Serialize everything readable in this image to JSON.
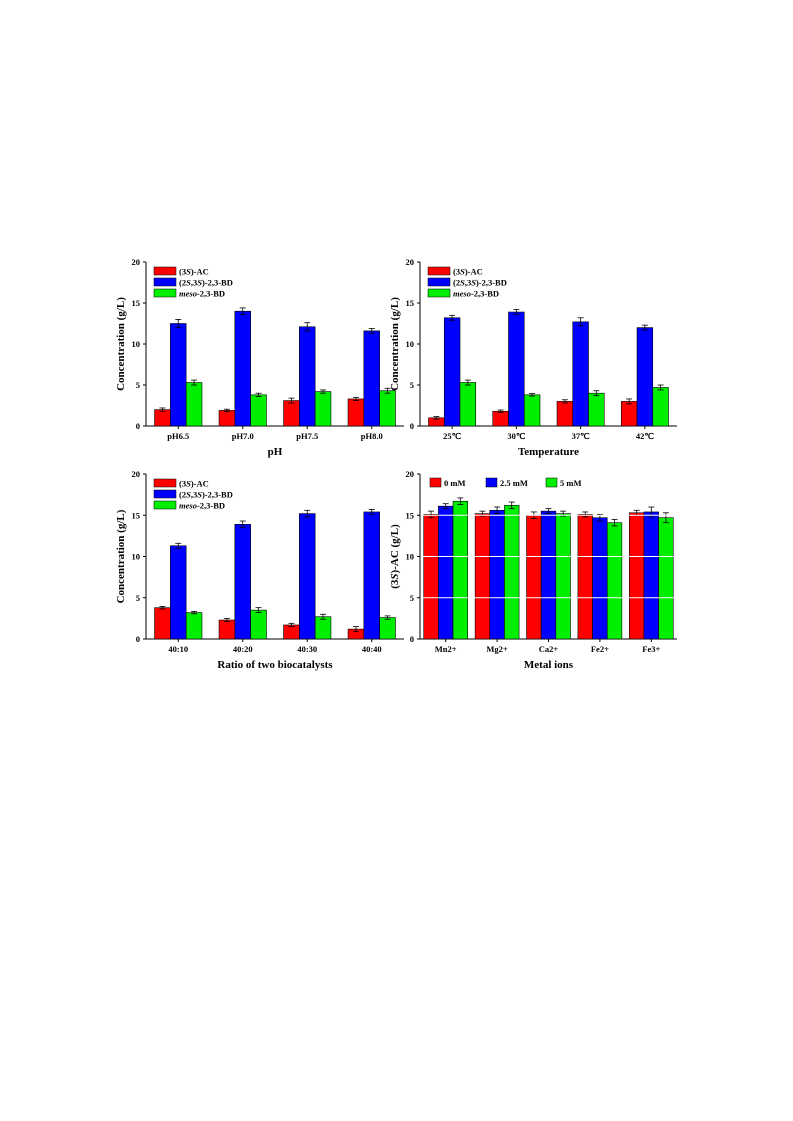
{
  "chart_data": [
    {
      "type": "bar",
      "xlabel": "pH",
      "ylabel": "Concentration (g/L)",
      "ylim": [
        0,
        20
      ],
      "yticks": [
        0,
        5,
        10,
        15,
        20
      ],
      "categories": [
        "pH6.5",
        "pH7.0",
        "pH7.5",
        "pH8.0"
      ],
      "legend_placement": "top-left",
      "legend_layout": "vertical",
      "series": [
        {
          "name": "(3S)-AC",
          "color": "#ff0000",
          "values": [
            2.0,
            1.9,
            3.1,
            3.3
          ],
          "errors": [
            0.2,
            0.15,
            0.3,
            0.2
          ]
        },
        {
          "name": "(2S,3S)-2,3-BD",
          "color": "#0000ff",
          "values": [
            12.5,
            14.0,
            12.1,
            11.6
          ],
          "errors": [
            0.5,
            0.4,
            0.5,
            0.3
          ]
        },
        {
          "name": "meso-2,3-BD",
          "color": "#00ee00",
          "values": [
            5.3,
            3.8,
            4.2,
            4.3
          ],
          "errors": [
            0.3,
            0.2,
            0.2,
            0.3
          ]
        }
      ]
    },
    {
      "type": "bar",
      "xlabel": "Temperature",
      "ylabel": "Concentration (g/L)",
      "ylim": [
        0,
        20
      ],
      "yticks": [
        0,
        5,
        10,
        15,
        20
      ],
      "categories": [
        "25℃",
        "30℃",
        "37℃",
        "42℃"
      ],
      "legend_placement": "top-left",
      "legend_layout": "vertical",
      "series": [
        {
          "name": "(3S)-AC",
          "color": "#ff0000",
          "values": [
            1.0,
            1.8,
            3.0,
            3.0
          ],
          "errors": [
            0.15,
            0.15,
            0.2,
            0.3
          ]
        },
        {
          "name": "(2S,3S)-2,3-BD",
          "color": "#0000ff",
          "values": [
            13.2,
            13.9,
            12.7,
            12.0
          ],
          "errors": [
            0.3,
            0.3,
            0.5,
            0.3
          ]
        },
        {
          "name": "meso-2,3-BD",
          "color": "#00ee00",
          "values": [
            5.3,
            3.8,
            4.0,
            4.7
          ],
          "errors": [
            0.3,
            0.15,
            0.3,
            0.3
          ]
        }
      ]
    },
    {
      "type": "bar",
      "xlabel": "Ratio of two biocatalysts",
      "ylabel": "Concentration (g/L)",
      "ylim": [
        0,
        20
      ],
      "yticks": [
        0,
        5,
        10,
        15,
        20
      ],
      "categories": [
        "40:10",
        "40:20",
        "40:30",
        "40:40"
      ],
      "legend_placement": "top-left",
      "legend_layout": "vertical",
      "series": [
        {
          "name": "(3S)-AC",
          "color": "#ff0000",
          "values": [
            3.8,
            2.3,
            1.7,
            1.2
          ],
          "errors": [
            0.15,
            0.2,
            0.2,
            0.3
          ]
        },
        {
          "name": "(2S,3S)-2,3-BD",
          "color": "#0000ff",
          "values": [
            11.3,
            13.9,
            15.2,
            15.4
          ],
          "errors": [
            0.3,
            0.4,
            0.4,
            0.3
          ]
        },
        {
          "name": "meso-2,3-BD",
          "color": "#00ee00",
          "values": [
            3.2,
            3.5,
            2.7,
            2.6
          ],
          "errors": [
            0.15,
            0.3,
            0.3,
            0.2
          ]
        }
      ]
    },
    {
      "type": "bar",
      "xlabel": "Metal ions",
      "ylabel": "(3S)-AC (g/L)",
      "ylim": [
        0,
        20
      ],
      "yticks": [
        0,
        5,
        10,
        15,
        20
      ],
      "categories": [
        "Mn2+",
        "Mg2+",
        "Ca2+",
        "Fe2+",
        "Fe3+"
      ],
      "legend_placement": "top",
      "legend_layout": "horizontal",
      "series": [
        {
          "name": "0 mM",
          "color": "#ff0000",
          "values": [
            15.1,
            15.2,
            15.0,
            15.1,
            15.3
          ],
          "errors": [
            0.4,
            0.3,
            0.4,
            0.3,
            0.3
          ]
        },
        {
          "name": "2.5 mM",
          "color": "#0000ff",
          "values": [
            16.1,
            15.6,
            15.5,
            14.7,
            15.4
          ],
          "errors": [
            0.3,
            0.4,
            0.3,
            0.4,
            0.6
          ]
        },
        {
          "name": "5 mM",
          "color": "#00ee00",
          "values": [
            16.7,
            16.2,
            15.2,
            14.1,
            14.7
          ],
          "errors": [
            0.4,
            0.4,
            0.3,
            0.4,
            0.6
          ]
        }
      ]
    }
  ]
}
